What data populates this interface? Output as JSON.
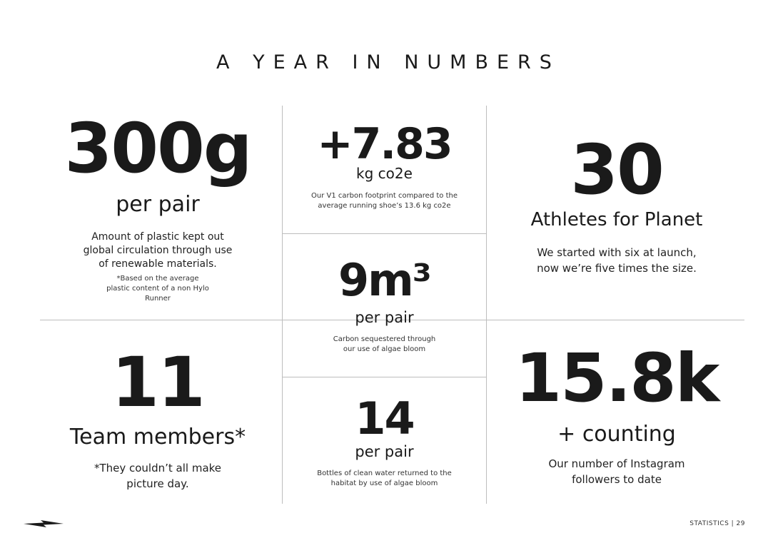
{
  "page": {
    "title": "A YEAR IN NUMBERS"
  },
  "stats": {
    "plastic": {
      "value": "300g",
      "unit": "per pair",
      "description": "Amount of plastic kept out global circulation through use of renewable materials.",
      "footnote": "*Based on the average plastic content of a non Hylo Runner"
    },
    "carbon": {
      "value": "+7.83",
      "unit": "kg co2e",
      "description": "Our V1 carbon footprint compared to the average running shoe’s 13.6 kg co2e"
    },
    "athletes": {
      "value": "30",
      "unit": "Athletes for Planet",
      "description": "We started with six at launch, now we’re five times the size."
    },
    "sequestered": {
      "value": "9m³",
      "unit": "per pair",
      "description": "Carbon sequestered through our use of algae bloom"
    },
    "team": {
      "value": "11",
      "unit": "Team members*",
      "description": "*They couldn’t all make picture day."
    },
    "water": {
      "value": "14",
      "unit": "per pair",
      "description": "Bottles of clean water returned to the habitat by use of algae bloom"
    },
    "instagram": {
      "value": "15.8k",
      "unit": "+ counting",
      "description": "Our number of Instagram followers to date"
    }
  },
  "footer": {
    "label": "STATISTICS | 29"
  },
  "logo": {
    "icon": "lightning-bolt-icon"
  }
}
